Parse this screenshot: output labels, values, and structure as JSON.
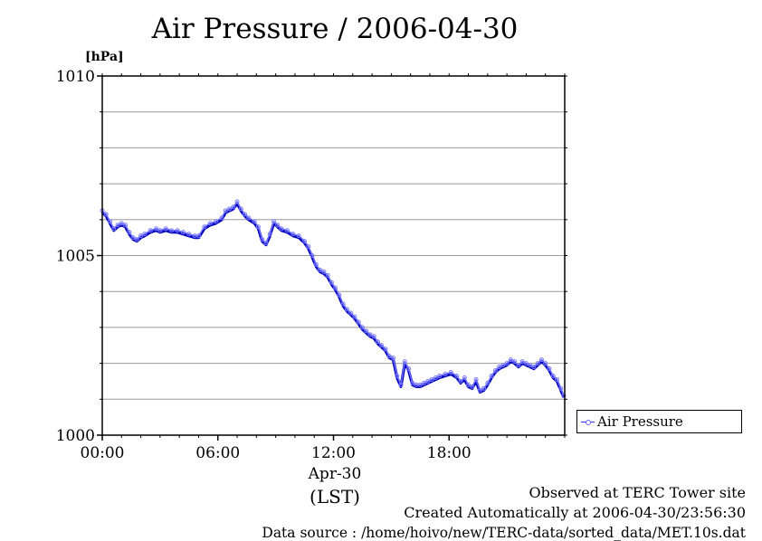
{
  "title": "Air Pressure / 2006-04-30",
  "unit_label": "[hPa]",
  "x_sub_date": "Apr-30",
  "x_sub_zone": "(LST)",
  "legend_label": "Air Pressure",
  "footer": {
    "observed": "Observed at TERC Tower site",
    "created": "Created Automatically at 2006-04-30/23:56:30",
    "source": "Data source : /home/hoivo/new/TERC-data/sorted_data/MET.10s.dat"
  },
  "chart_data": {
    "type": "line",
    "title": "Air Pressure / 2006-04-30",
    "ylabel": "[hPa]",
    "xlabel": "Apr-30 (LST)",
    "xlim": [
      0,
      24
    ],
    "ylim": [
      1000,
      1010
    ],
    "x_ticks": [
      {
        "value": 0,
        "label": "00:00"
      },
      {
        "value": 6,
        "label": "06:00"
      },
      {
        "value": 12,
        "label": "12:00"
      },
      {
        "value": 18,
        "label": "18:00"
      }
    ],
    "y_ticks": [
      {
        "value": 1000,
        "label": "1000"
      },
      {
        "value": 1005,
        "label": "1005"
      },
      {
        "value": 1010,
        "label": "1010"
      }
    ],
    "y_grid": [
      1001,
      1002,
      1003,
      1004,
      1005,
      1006,
      1007,
      1008,
      1009,
      1010
    ],
    "grid": true,
    "legend": "outside-right",
    "color": "#3333ff",
    "series": [
      {
        "name": "Air Pressure",
        "x": [
          0.0,
          0.2,
          0.4,
          0.6,
          0.8,
          1.0,
          1.2,
          1.4,
          1.6,
          1.8,
          2.0,
          2.2,
          2.5,
          2.8,
          3.0,
          3.3,
          3.6,
          3.9,
          4.2,
          4.5,
          4.8,
          5.0,
          5.3,
          5.6,
          5.9,
          6.2,
          6.4,
          6.6,
          6.8,
          7.0,
          7.2,
          7.4,
          7.6,
          7.9,
          8.1,
          8.3,
          8.5,
          8.7,
          8.9,
          9.1,
          9.3,
          9.6,
          9.9,
          10.2,
          10.5,
          10.7,
          10.9,
          11.1,
          11.3,
          11.5,
          11.7,
          11.9,
          12.1,
          12.3,
          12.5,
          12.7,
          12.9,
          13.1,
          13.3,
          13.5,
          13.7,
          13.9,
          14.1,
          14.3,
          14.5,
          14.7,
          14.9,
          15.1,
          15.3,
          15.5,
          15.7,
          15.9,
          16.1,
          16.3,
          16.5,
          16.7,
          16.9,
          17.1,
          17.3,
          17.5,
          17.8,
          18.1,
          18.4,
          18.6,
          18.8,
          19.0,
          19.2,
          19.4,
          19.6,
          19.8,
          20.0,
          20.2,
          20.4,
          20.6,
          20.8,
          21.0,
          21.2,
          21.4,
          21.6,
          21.8,
          22.0,
          22.2,
          22.4,
          22.6,
          22.8,
          23.0,
          23.2,
          23.4,
          23.6,
          23.8,
          23.95
        ],
        "y": [
          1006.2,
          1006.1,
          1005.9,
          1005.7,
          1005.8,
          1005.85,
          1005.8,
          1005.6,
          1005.45,
          1005.4,
          1005.5,
          1005.55,
          1005.65,
          1005.7,
          1005.65,
          1005.7,
          1005.65,
          1005.65,
          1005.6,
          1005.55,
          1005.5,
          1005.5,
          1005.75,
          1005.85,
          1005.9,
          1006.0,
          1006.2,
          1006.25,
          1006.3,
          1006.45,
          1006.25,
          1006.1,
          1006.0,
          1005.9,
          1005.75,
          1005.4,
          1005.3,
          1005.55,
          1005.9,
          1005.8,
          1005.7,
          1005.65,
          1005.55,
          1005.5,
          1005.35,
          1005.2,
          1004.95,
          1004.7,
          1004.55,
          1004.5,
          1004.4,
          1004.2,
          1004.05,
          1003.85,
          1003.6,
          1003.45,
          1003.35,
          1003.25,
          1003.1,
          1002.95,
          1002.85,
          1002.75,
          1002.7,
          1002.55,
          1002.45,
          1002.35,
          1002.15,
          1002.1,
          1001.6,
          1001.35,
          1002.0,
          1001.8,
          1001.4,
          1001.35,
          1001.35,
          1001.4,
          1001.45,
          1001.5,
          1001.55,
          1001.6,
          1001.65,
          1001.7,
          1001.6,
          1001.45,
          1001.55,
          1001.35,
          1001.3,
          1001.5,
          1001.2,
          1001.25,
          1001.4,
          1001.6,
          1001.75,
          1001.85,
          1001.9,
          1001.95,
          1002.05,
          1002.0,
          1001.9,
          1002.0,
          1001.95,
          1001.9,
          1001.85,
          1001.95,
          1002.05,
          1001.95,
          1001.8,
          1001.6,
          1001.5,
          1001.25,
          1001.05
        ]
      }
    ]
  }
}
